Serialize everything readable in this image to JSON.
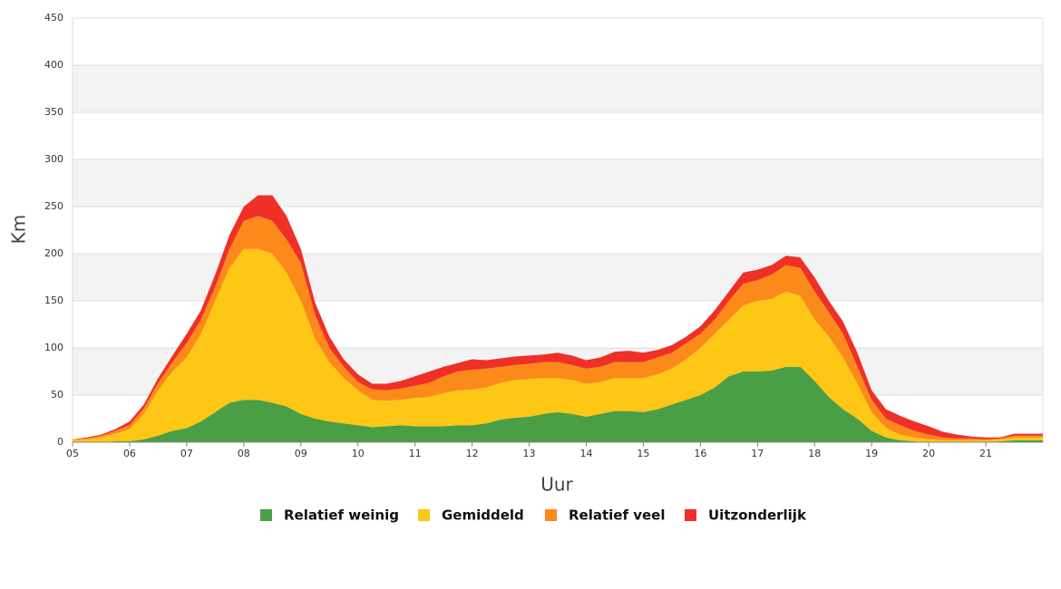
{
  "chart_data": {
    "type": "stacked-area",
    "xlabel": "Uur",
    "ylabel": "Km",
    "x": [
      5,
      5.25,
      5.5,
      5.75,
      6,
      6.25,
      6.5,
      6.75,
      7,
      7.25,
      7.5,
      7.75,
      8,
      8.25,
      8.5,
      8.75,
      9,
      9.25,
      9.5,
      9.75,
      10,
      10.25,
      10.5,
      10.75,
      11,
      11.25,
      11.5,
      11.75,
      12,
      12.25,
      12.5,
      12.75,
      13,
      13.25,
      13.5,
      13.75,
      14,
      14.25,
      14.5,
      14.75,
      15,
      15.25,
      15.5,
      15.75,
      16,
      16.25,
      16.5,
      16.75,
      17,
      17.25,
      17.5,
      17.75,
      18,
      18.25,
      18.5,
      18.75,
      19,
      19.25,
      19.5,
      19.75,
      20,
      20.25,
      20.5,
      20.75,
      21,
      21.25,
      21.5,
      21.75,
      22
    ],
    "series": [
      {
        "name": "Relatief weinig",
        "color": "#4a9e45",
        "values": [
          0,
          0,
          0,
          1,
          1,
          3,
          7,
          12,
          15,
          22,
          32,
          42,
          45,
          45,
          42,
          38,
          30,
          25,
          22,
          20,
          18,
          16,
          17,
          18,
          17,
          17,
          17,
          18,
          18,
          20,
          24,
          26,
          27,
          30,
          32,
          30,
          27,
          30,
          33,
          33,
          32,
          35,
          40,
          45,
          50,
          58,
          70,
          75,
          75,
          76,
          80,
          80,
          65,
          48,
          35,
          25,
          12,
          5,
          2,
          1,
          0,
          0,
          0,
          0,
          0,
          1,
          2,
          2,
          2
        ]
      },
      {
        "name": "Gemiddeld",
        "color": "#fec615",
        "values": [
          2,
          3,
          5,
          8,
          13,
          27,
          48,
          63,
          75,
          93,
          118,
          143,
          160,
          160,
          158,
          142,
          120,
          85,
          63,
          48,
          37,
          29,
          27,
          27,
          30,
          31,
          35,
          37,
          38,
          38,
          39,
          40,
          40,
          38,
          36,
          36,
          35,
          34,
          35,
          35,
          36,
          37,
          38,
          43,
          50,
          57,
          60,
          70,
          75,
          76,
          80,
          75,
          65,
          64,
          55,
          37,
          20,
          10,
          6,
          4,
          3,
          2,
          2,
          2,
          2,
          2,
          3,
          3,
          3
        ]
      },
      {
        "name": "Relatief veel",
        "color": "#fb8a1a",
        "values": [
          1,
          1,
          2,
          3,
          4,
          6,
          8,
          10,
          15,
          15,
          15,
          20,
          30,
          35,
          35,
          35,
          40,
          25,
          15,
          12,
          9,
          11,
          11,
          12,
          13,
          15,
          18,
          20,
          21,
          20,
          17,
          16,
          16,
          17,
          17,
          16,
          16,
          16,
          17,
          17,
          17,
          18,
          17,
          17,
          15,
          15,
          20,
          23,
          22,
          26,
          28,
          30,
          30,
          26,
          25,
          18,
          13,
          10,
          10,
          7,
          5,
          3,
          2,
          2,
          1,
          1,
          2,
          2,
          2
        ]
      },
      {
        "name": "Uitzonderlijk",
        "color": "#ef3027",
        "values": [
          0,
          1,
          1,
          2,
          4,
          4,
          5,
          7,
          10,
          10,
          13,
          15,
          15,
          22,
          27,
          25,
          15,
          13,
          12,
          8,
          8,
          6,
          7,
          8,
          10,
          12,
          10,
          9,
          11,
          9,
          9,
          9,
          9,
          8,
          10,
          10,
          9,
          10,
          11,
          12,
          10,
          8,
          8,
          7,
          8,
          10,
          10,
          12,
          11,
          10,
          10,
          11,
          15,
          12,
          13,
          15,
          10,
          10,
          10,
          10,
          9,
          6,
          4,
          2,
          2,
          1,
          2,
          2,
          2
        ]
      }
    ],
    "xlim": [
      5,
      22
    ],
    "xticks": [
      {
        "value": 5,
        "label": "05"
      },
      {
        "value": 6,
        "label": "06"
      },
      {
        "value": 7,
        "label": "07"
      },
      {
        "value": 8,
        "label": "08"
      },
      {
        "value": 9,
        "label": "09"
      },
      10,
      11,
      12,
      13,
      14,
      15,
      16,
      17,
      18,
      19,
      20,
      21
    ],
    "ylim": [
      0,
      450
    ],
    "yticks": [
      0,
      50,
      100,
      150,
      200,
      250,
      300,
      350,
      400,
      450
    ],
    "grid": true,
    "banded_background": true,
    "legend": "bottom"
  }
}
